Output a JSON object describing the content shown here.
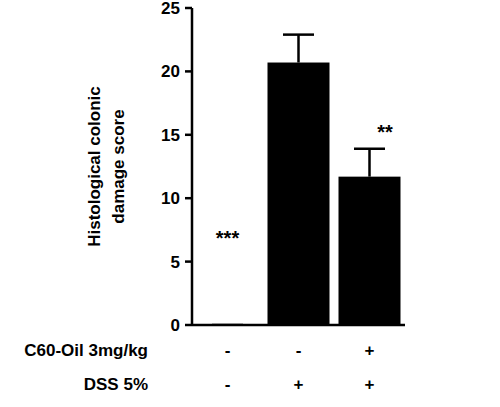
{
  "chart_data": {
    "type": "bar",
    "y_label": "Histological colonic damage score",
    "categories": [
      null,
      null,
      null
    ],
    "values": [
      0,
      20.7,
      11.7
    ],
    "errors": [
      0,
      2.2,
      2.2
    ],
    "color": "#000000",
    "ylim": [
      0,
      25
    ],
    "yticks": [
      0,
      5,
      10,
      15,
      20,
      25
    ],
    "grid": false,
    "conditions": [
      {
        "label": "C60-Oil 3mg/kg",
        "values": [
          "-",
          "-",
          "+"
        ]
      },
      {
        "label": "DSS 5%",
        "values": [
          "-",
          "+",
          "+"
        ]
      }
    ],
    "annotations": [
      {
        "index": 0,
        "text": "***"
      },
      {
        "index": 2,
        "text": "**"
      }
    ]
  }
}
